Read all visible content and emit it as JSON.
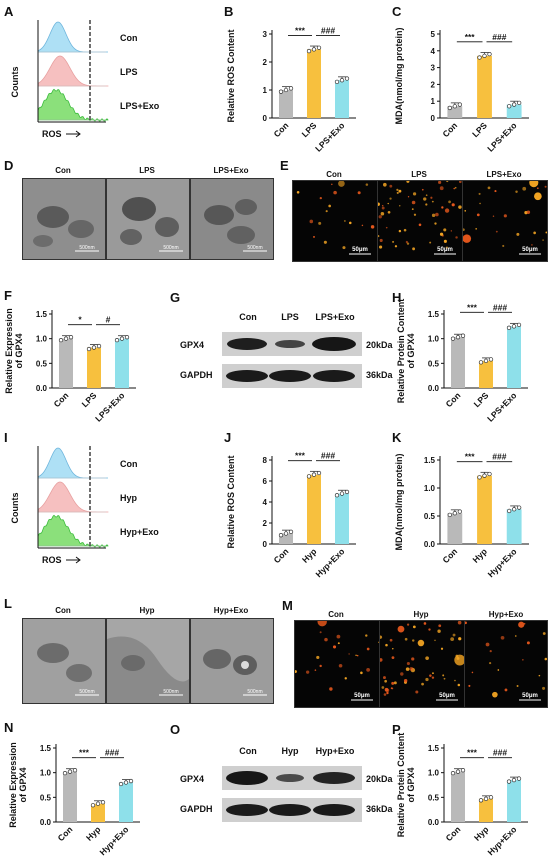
{
  "panel_letters": [
    "A",
    "B",
    "C",
    "D",
    "E",
    "F",
    "G",
    "H",
    "I",
    "J",
    "K",
    "L",
    "M",
    "N",
    "O",
    "P"
  ],
  "common": {
    "groups_lps": [
      "Con",
      "LPS",
      "LPS+Exo"
    ],
    "groups_hyp": [
      "Con",
      "Hyp",
      "Hyp+Exo"
    ],
    "scale_em": "500nm",
    "scale_fl": "50μm",
    "flow_ylabel": "Counts",
    "flow_xlabel": "ROS",
    "gpx4": "GPX4",
    "gapdh": "GAPDH",
    "kda_gpx4": "20kDa",
    "kda_gapdh": "36kDa"
  },
  "colors": {
    "con": "#b9b9b9",
    "treat": "#f7c03e",
    "exo": "#8ee0ea",
    "flow_blue": "#aee0f5",
    "flow_pink": "#f6c0c0",
    "flow_green": "#8be07b"
  },
  "chart_data": [
    {
      "panel": "B",
      "type": "bar",
      "categories": [
        "Con",
        "LPS",
        "LPS+Exo"
      ],
      "values": [
        1.0,
        2.45,
        1.35
      ],
      "ylabel": "Relative ROS Content",
      "ylim": [
        0,
        3
      ],
      "yticks": [
        0,
        1,
        2,
        3
      ],
      "sig": [
        "***",
        "###"
      ]
    },
    {
      "panel": "C",
      "type": "bar",
      "categories": [
        "Con",
        "LPS",
        "LPS+Exo"
      ],
      "values": [
        0.7,
        3.7,
        0.8
      ],
      "ylabel": "MDA(nmol/mg protein)",
      "ylim": [
        0,
        5
      ],
      "yticks": [
        0,
        1,
        2,
        3,
        4,
        5
      ],
      "sig": [
        "***",
        "###"
      ]
    },
    {
      "panel": "F",
      "type": "bar",
      "categories": [
        "Con",
        "LPS",
        "LPS+Exo"
      ],
      "values": [
        1.0,
        0.82,
        1.0
      ],
      "ylabel": "Relative Expression of GPX4",
      "ylim": [
        0,
        1.5
      ],
      "yticks": [
        0.0,
        0.5,
        1.0,
        1.5
      ],
      "sig": [
        "*",
        "#"
      ]
    },
    {
      "panel": "H",
      "type": "bar",
      "categories": [
        "Con",
        "LPS",
        "LPS+Exo"
      ],
      "values": [
        1.03,
        0.55,
        1.25
      ],
      "ylabel": "Relative Protein Content of GPX4",
      "ylim": [
        0,
        1.5
      ],
      "yticks": [
        0.0,
        0.5,
        1.0,
        1.5
      ],
      "sig": [
        "***",
        "###"
      ]
    },
    {
      "panel": "J",
      "type": "bar",
      "categories": [
        "Con",
        "Hyp",
        "Hyp+Exo"
      ],
      "values": [
        1.0,
        6.6,
        4.8
      ],
      "ylabel": "Relative ROS Content",
      "ylim": [
        0,
        8
      ],
      "yticks": [
        0,
        2,
        4,
        6,
        8
      ],
      "sig": [
        "***",
        "###"
      ]
    },
    {
      "panel": "K",
      "type": "bar",
      "categories": [
        "Con",
        "Hyp",
        "Hyp+Exo"
      ],
      "values": [
        0.55,
        1.22,
        0.62
      ],
      "ylabel": "MDA(nmol/mg protein)",
      "ylim": [
        0,
        1.5
      ],
      "yticks": [
        0.0,
        0.5,
        1.0,
        1.5
      ],
      "sig": [
        "***",
        "###"
      ]
    },
    {
      "panel": "N",
      "type": "bar",
      "categories": [
        "Con",
        "Hyp",
        "Hyp+Exo"
      ],
      "values": [
        1.02,
        0.37,
        0.8
      ],
      "ylabel": "Relative Expression of GPX4",
      "ylim": [
        0,
        1.5
      ],
      "yticks": [
        0.0,
        0.5,
        1.0,
        1.5
      ],
      "sig": [
        "***",
        "###"
      ]
    },
    {
      "panel": "P",
      "type": "bar",
      "categories": [
        "Con",
        "Hyp",
        "Hyp+Exo"
      ],
      "values": [
        1.02,
        0.47,
        0.85
      ],
      "ylabel": "Relative Protein Content of GPX4",
      "ylim": [
        0,
        1.5
      ],
      "yticks": [
        0.0,
        0.5,
        1.0,
        1.5
      ],
      "sig": [
        "***",
        "###"
      ]
    }
  ]
}
